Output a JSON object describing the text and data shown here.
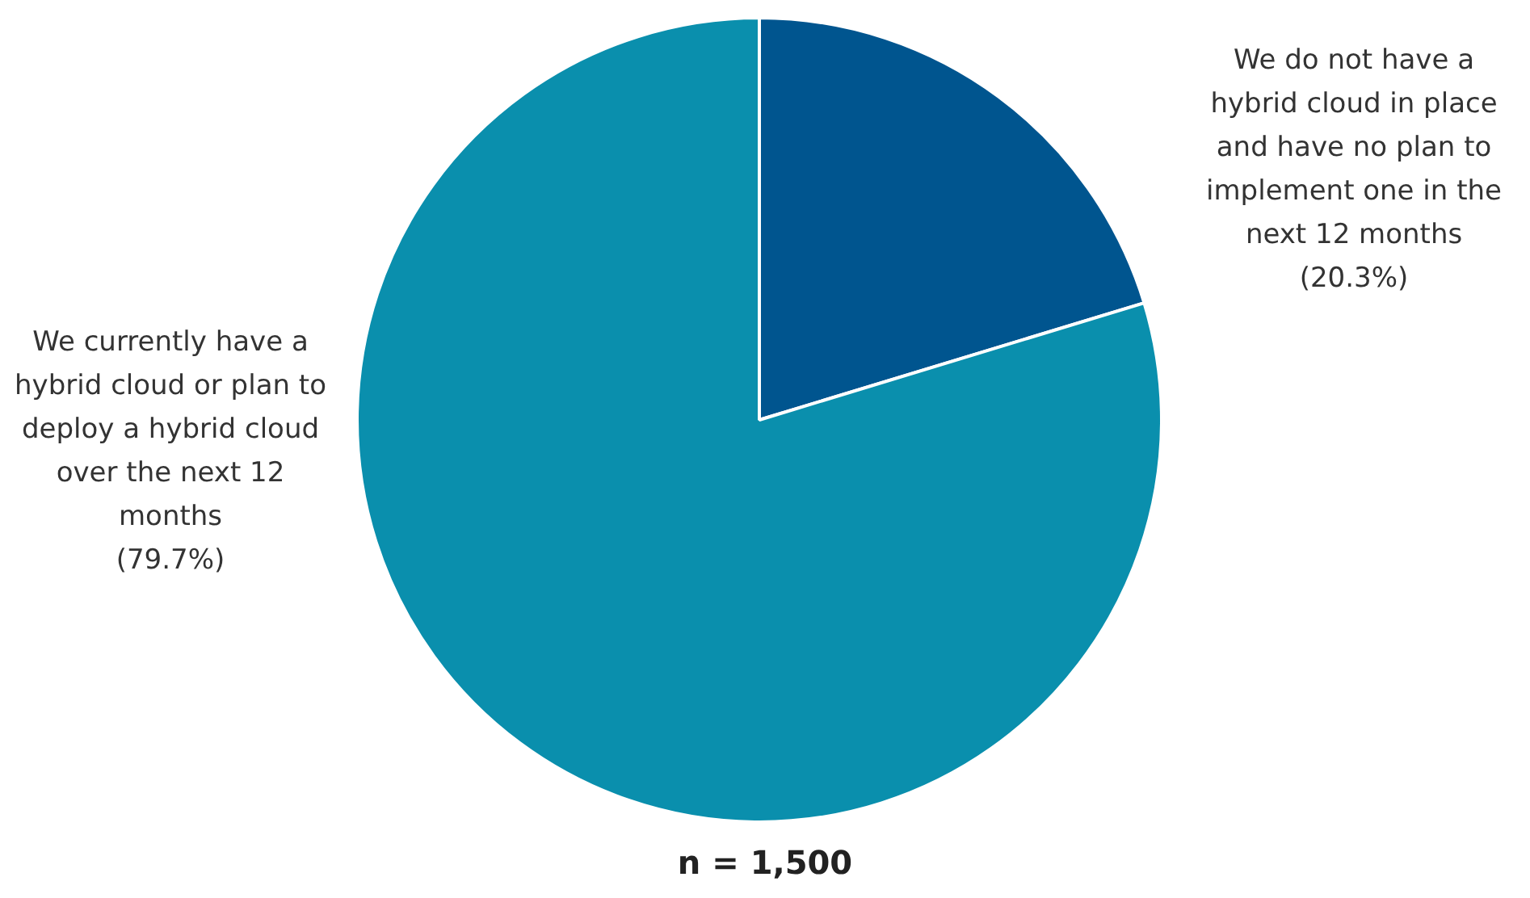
{
  "chart_data": {
    "type": "pie",
    "categories": [
      "We do not have a hybrid cloud in place and have no plan to implement one in the next 12 months",
      "We currently have a hybrid cloud or plan to deploy a hybrid cloud over the next 12 months"
    ],
    "values": [
      20.3,
      79.7
    ],
    "colors": [
      "#00558f",
      "#0a8fad"
    ],
    "value_labels": [
      "(20.3%)",
      "(79.7%)"
    ],
    "annotations": [
      "n = 1,500"
    ],
    "legend": false
  }
}
